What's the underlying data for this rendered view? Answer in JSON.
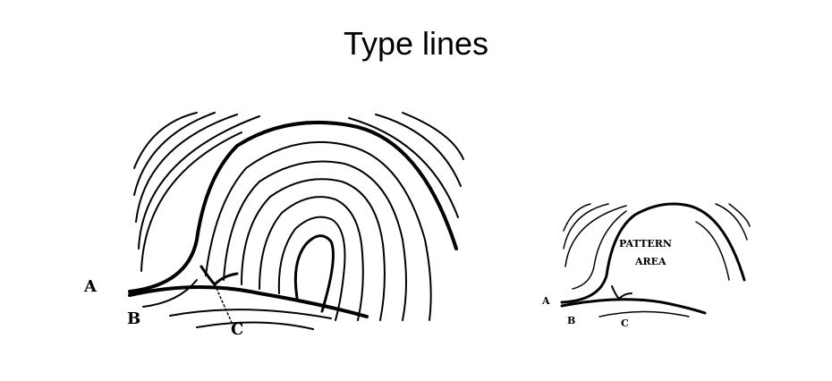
{
  "title": "Type lines",
  "left_figure": {
    "labels": {
      "a": "A",
      "b": "B",
      "c": "C"
    }
  },
  "right_figure": {
    "labels": {
      "a": "A",
      "b": "B",
      "c": "C"
    },
    "area_line1": "PATTERN",
    "area_line2": "AREA"
  }
}
